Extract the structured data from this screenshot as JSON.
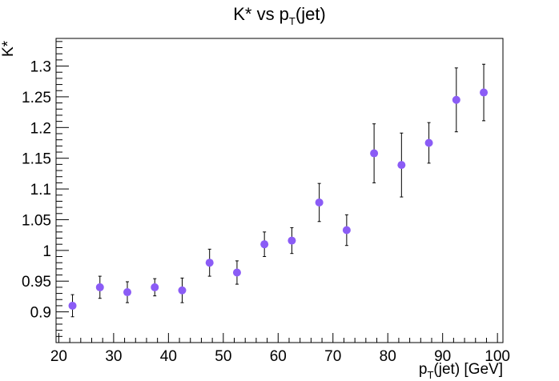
{
  "chart_data": {
    "type": "scatter",
    "title": {
      "main": "K* vs p",
      "sub": "T",
      "suffix": "(jet)"
    },
    "xlabel": {
      "main": "p",
      "sub": "T",
      "suffix": "(jet) [GeV]"
    },
    "ylabel": "K*",
    "xlim": [
      19.5,
      101
    ],
    "ylim": [
      0.85,
      1.345
    ],
    "x_ticks": [
      20,
      30,
      40,
      50,
      60,
      70,
      80,
      90,
      100
    ],
    "x_tick_labels": [
      "20",
      "30",
      "40",
      "50",
      "60",
      "70",
      "80",
      "90",
      "100"
    ],
    "y_ticks": [
      0.9,
      0.95,
      1.0,
      1.05,
      1.1,
      1.15,
      1.2,
      1.25,
      1.3
    ],
    "y_tick_labels": [
      "0.9",
      "0.95",
      "1",
      "1.05",
      "1.1",
      "1.15",
      "1.2",
      "1.25",
      "1.3"
    ],
    "grid": false,
    "marker_color": "#8b5cf6",
    "series": [
      {
        "x": [
          22.5,
          27.5,
          32.5,
          37.5,
          42.5,
          47.5,
          52.5,
          57.5,
          62.5,
          67.5,
          72.5,
          77.5,
          82.5,
          87.5,
          92.5,
          97.5
        ],
        "y": [
          0.91,
          0.94,
          0.932,
          0.94,
          0.935,
          0.98,
          0.964,
          1.01,
          1.016,
          1.078,
          1.033,
          1.158,
          1.139,
          1.175,
          1.245,
          1.257
        ],
        "yerr": [
          0.018,
          0.018,
          0.017,
          0.014,
          0.02,
          0.022,
          0.019,
          0.02,
          0.021,
          0.031,
          0.025,
          0.048,
          0.052,
          0.033,
          0.052,
          0.046
        ]
      }
    ]
  }
}
